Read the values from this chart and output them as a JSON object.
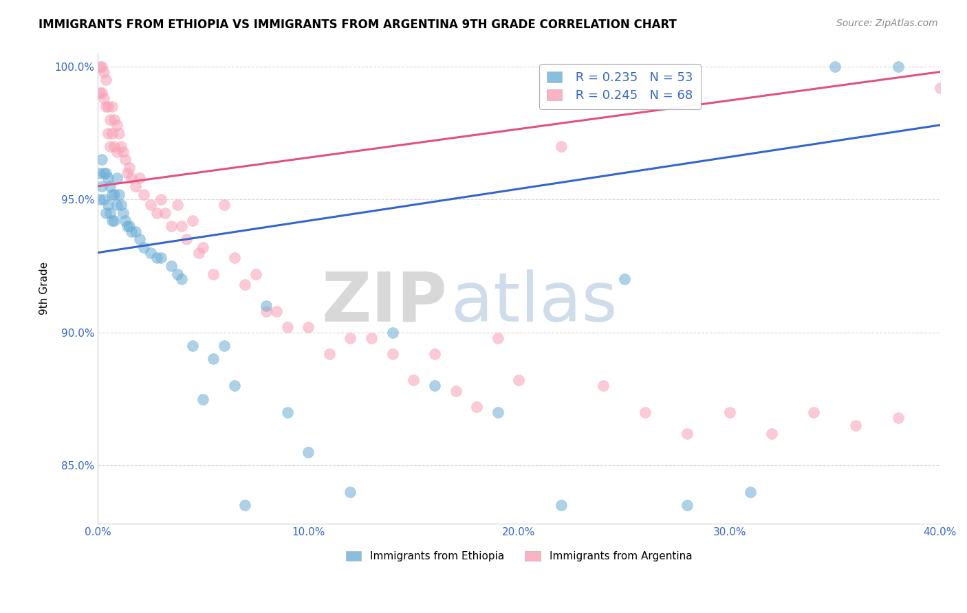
{
  "title": "IMMIGRANTS FROM ETHIOPIA VS IMMIGRANTS FROM ARGENTINA 9TH GRADE CORRELATION CHART",
  "source": "Source: ZipAtlas.com",
  "xlabel": "",
  "ylabel": "9th Grade",
  "xlim": [
    0.0,
    0.4
  ],
  "ylim": [
    0.828,
    1.005
  ],
  "yticks": [
    1.0,
    0.95,
    0.9,
    0.85
  ],
  "ytick_labels": [
    "100.0%",
    "95.0%",
    "90.0%",
    "85.0%"
  ],
  "xticks": [
    0.0,
    0.1,
    0.2,
    0.3,
    0.4
  ],
  "xtick_labels": [
    "0.0%",
    "10.0%",
    "20.0%",
    "30.0%",
    "40.0%"
  ],
  "ethiopia_color": "#6baed6",
  "argentina_color": "#fa9fb5",
  "ethiopia_R": 0.235,
  "ethiopia_N": 53,
  "argentina_R": 0.245,
  "argentina_N": 68,
  "line_blue": "#3366cc",
  "line_pink": "#e05080",
  "ethiopia_x": [
    0.001,
    0.001,
    0.002,
    0.002,
    0.003,
    0.003,
    0.004,
    0.004,
    0.005,
    0.005,
    0.006,
    0.006,
    0.007,
    0.007,
    0.008,
    0.008,
    0.009,
    0.009,
    0.01,
    0.011,
    0.012,
    0.013,
    0.014,
    0.015,
    0.016,
    0.018,
    0.02,
    0.022,
    0.025,
    0.028,
    0.03,
    0.035,
    0.038,
    0.04,
    0.045,
    0.05,
    0.055,
    0.06,
    0.065,
    0.07,
    0.08,
    0.09,
    0.1,
    0.12,
    0.14,
    0.16,
    0.19,
    0.22,
    0.25,
    0.28,
    0.31,
    0.35,
    0.38
  ],
  "ethiopia_y": [
    0.96,
    0.95,
    0.965,
    0.955,
    0.96,
    0.95,
    0.96,
    0.945,
    0.958,
    0.948,
    0.955,
    0.945,
    0.952,
    0.942,
    0.952,
    0.942,
    0.958,
    0.948,
    0.952,
    0.948,
    0.945,
    0.942,
    0.94,
    0.94,
    0.938,
    0.938,
    0.935,
    0.932,
    0.93,
    0.928,
    0.928,
    0.925,
    0.922,
    0.92,
    0.895,
    0.875,
    0.89,
    0.895,
    0.88,
    0.835,
    0.91,
    0.87,
    0.855,
    0.84,
    0.9,
    0.88,
    0.87,
    0.835,
    0.92,
    0.835,
    0.84,
    1.0,
    1.0
  ],
  "argentina_x": [
    0.001,
    0.001,
    0.002,
    0.002,
    0.003,
    0.003,
    0.004,
    0.004,
    0.005,
    0.005,
    0.006,
    0.006,
    0.007,
    0.007,
    0.008,
    0.008,
    0.009,
    0.009,
    0.01,
    0.011,
    0.012,
    0.013,
    0.014,
    0.015,
    0.016,
    0.018,
    0.02,
    0.022,
    0.025,
    0.028,
    0.03,
    0.032,
    0.035,
    0.038,
    0.04,
    0.042,
    0.045,
    0.048,
    0.05,
    0.055,
    0.06,
    0.065,
    0.07,
    0.075,
    0.08,
    0.085,
    0.09,
    0.1,
    0.11,
    0.12,
    0.13,
    0.14,
    0.15,
    0.16,
    0.17,
    0.18,
    0.19,
    0.2,
    0.22,
    0.24,
    0.26,
    0.28,
    0.3,
    0.32,
    0.34,
    0.36,
    0.38,
    0.4
  ],
  "argentina_y": [
    1.0,
    0.99,
    1.0,
    0.99,
    0.998,
    0.988,
    0.995,
    0.985,
    0.985,
    0.975,
    0.98,
    0.97,
    0.985,
    0.975,
    0.98,
    0.97,
    0.978,
    0.968,
    0.975,
    0.97,
    0.968,
    0.965,
    0.96,
    0.962,
    0.958,
    0.955,
    0.958,
    0.952,
    0.948,
    0.945,
    0.95,
    0.945,
    0.94,
    0.948,
    0.94,
    0.935,
    0.942,
    0.93,
    0.932,
    0.922,
    0.948,
    0.928,
    0.918,
    0.922,
    0.908,
    0.908,
    0.902,
    0.902,
    0.892,
    0.898,
    0.898,
    0.892,
    0.882,
    0.892,
    0.878,
    0.872,
    0.898,
    0.882,
    0.97,
    0.88,
    0.87,
    0.862,
    0.87,
    0.862,
    0.87,
    0.865,
    0.868,
    0.992
  ],
  "watermark_zip_text": "ZIP",
  "watermark_atlas_text": "atlas",
  "eth_line_x0": 0.0,
  "eth_line_y0": 0.93,
  "eth_line_x1": 0.4,
  "eth_line_y1": 0.978,
  "arg_line_x0": 0.0,
  "arg_line_y0": 0.955,
  "arg_line_x1": 0.4,
  "arg_line_y1": 0.998
}
